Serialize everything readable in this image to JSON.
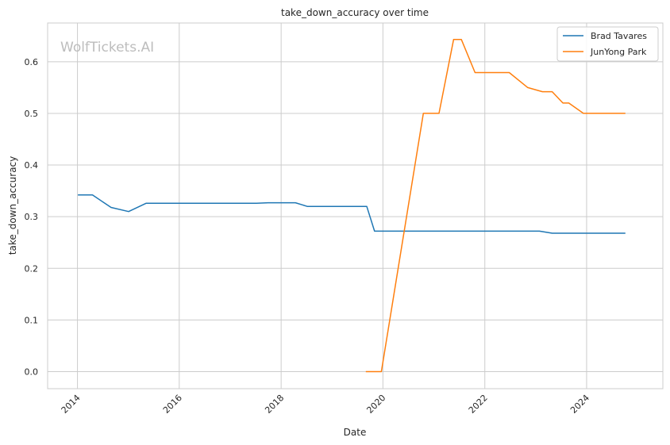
{
  "chart_data": {
    "type": "line",
    "title": "take_down_accuracy over time",
    "xlabel": "Date",
    "ylabel": "take_down_accuracy",
    "watermark": "WolfTickets.AI",
    "x_axis": "date",
    "xlim": [
      "2013-06-01",
      "2025-07-01"
    ],
    "ylim": [
      -0.033,
      0.675
    ],
    "x_ticks": [
      "2014",
      "2016",
      "2018",
      "2020",
      "2022",
      "2024"
    ],
    "y_ticks": [
      "0.0",
      "0.1",
      "0.2",
      "0.3",
      "0.4",
      "0.5",
      "0.6"
    ],
    "grid": true,
    "legend_position": "top-right",
    "series": [
      {
        "name": "Brad Tavares",
        "color": "#1f77b4",
        "points": [
          [
            "2014-01-04",
            0.342
          ],
          [
            "2014-04-19",
            0.342
          ],
          [
            "2014-08-30",
            0.318
          ],
          [
            "2015-01-03",
            0.31
          ],
          [
            "2015-05-09",
            0.326
          ],
          [
            "2017-07-08",
            0.326
          ],
          [
            "2017-09-30",
            0.327
          ],
          [
            "2018-04-14",
            0.327
          ],
          [
            "2018-07-07",
            0.32
          ],
          [
            "2019-09-07",
            0.32
          ],
          [
            "2019-11-02",
            0.272
          ],
          [
            "2023-01-28",
            0.272
          ],
          [
            "2023-04-29",
            0.268
          ],
          [
            "2024-10-05",
            0.268
          ]
        ]
      },
      {
        "name": "JunYong Park",
        "color": "#ff7f0e",
        "points": [
          [
            "2019-08-31",
            0.0
          ],
          [
            "2019-12-21",
            0.0
          ],
          [
            "2020-10-17",
            0.5
          ],
          [
            "2021-02-06",
            0.5
          ],
          [
            "2021-05-22",
            0.643
          ],
          [
            "2021-07-17",
            0.643
          ],
          [
            "2021-10-23",
            0.579
          ],
          [
            "2022-06-25",
            0.579
          ],
          [
            "2022-11-05",
            0.55
          ],
          [
            "2023-02-18",
            0.542
          ],
          [
            "2023-04-29",
            0.542
          ],
          [
            "2023-07-15",
            0.52
          ],
          [
            "2023-08-26",
            0.52
          ],
          [
            "2023-12-09",
            0.5
          ],
          [
            "2024-10-05",
            0.5
          ]
        ]
      }
    ]
  }
}
